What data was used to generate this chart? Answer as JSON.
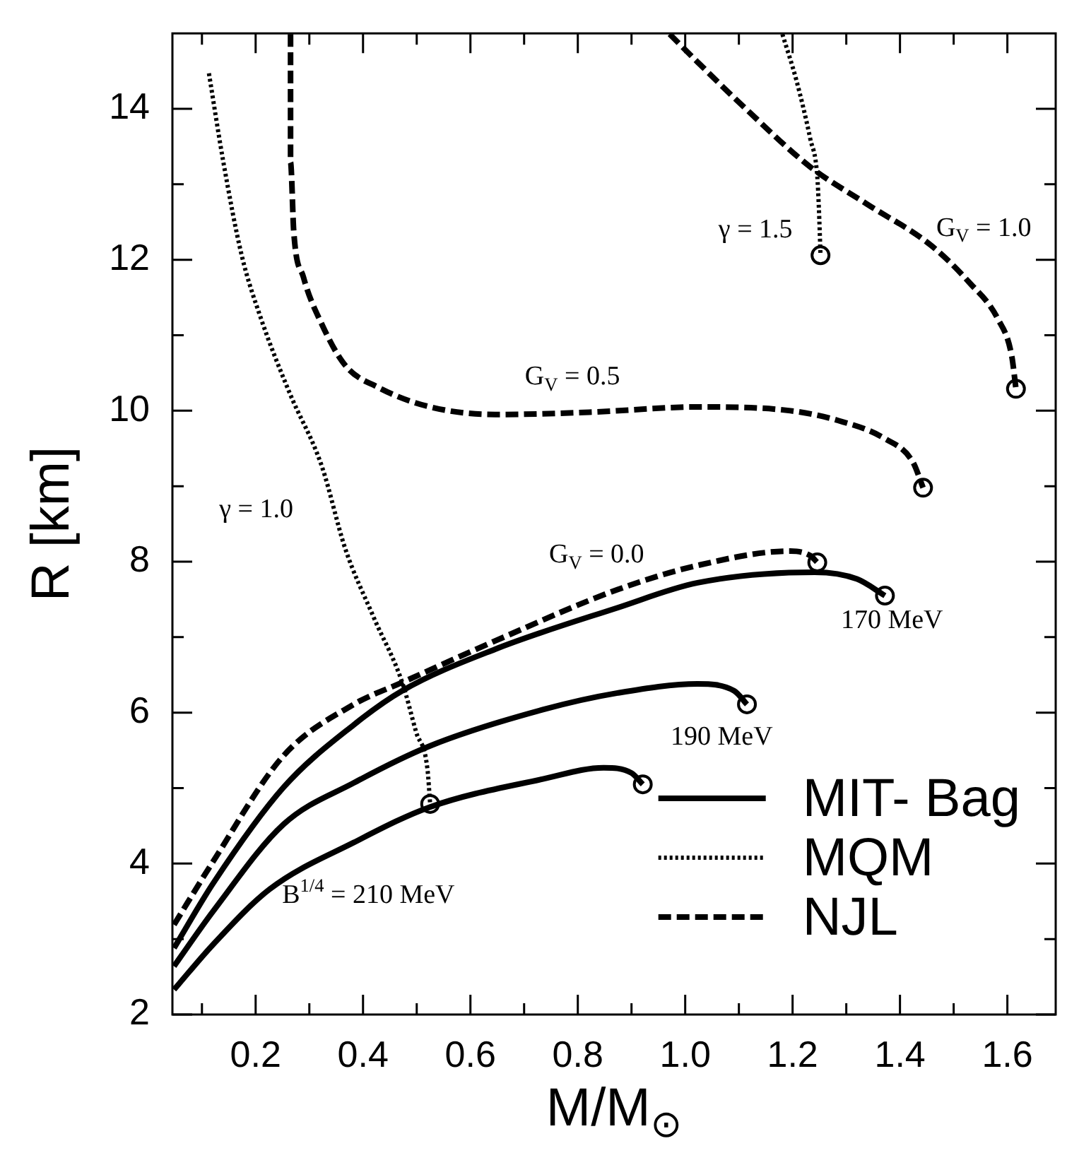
{
  "chart_data": {
    "type": "line",
    "xlabel": "M/M$_{⊙}$",
    "ylabel": "R [km]",
    "xlim": [
      0.045,
      1.69
    ],
    "ylim": [
      2,
      15
    ],
    "xticks": [
      {
        "value": 0.1,
        "label": null
      },
      0.2,
      {
        "value": 0.3,
        "label": null
      },
      0.4,
      {
        "value": 0.5,
        "label": null
      },
      0.6,
      {
        "value": 0.7,
        "label": null
      },
      0.8,
      {
        "value": 0.9,
        "label": null
      },
      {
        "value": 1.0,
        "label": "1.0"
      },
      {
        "value": 1.1,
        "label": null
      },
      1.2,
      {
        "value": 1.3,
        "label": null
      },
      1.4,
      {
        "value": 1.5,
        "label": null
      },
      1.6
    ],
    "yticks": [
      2,
      {
        "value": 3,
        "label": null
      },
      4,
      {
        "value": 5,
        "label": null
      },
      6,
      {
        "value": 7,
        "label": null
      },
      8,
      {
        "value": 9,
        "label": null
      },
      10,
      {
        "value": 11,
        "label": null
      },
      12,
      {
        "value": 13,
        "label": null
      },
      14
    ],
    "grid": false,
    "legend": "bottom right",
    "marker": "none",
    "series": [
      {
        "name": "MIT- Bag",
        "color": "#000000",
        "line_style": "solid",
        "x": [
          0.048,
          0.121,
          0.226,
          0.383,
          0.525,
          0.735,
          0.848,
          0.9,
          0.921
        ],
        "values": [
          2.33,
          2.93,
          3.66,
          4.28,
          4.75,
          5.12,
          5.27,
          5.2,
          5.05
        ]
      },
      {
        "color": "#000000",
        "line_style": "solid",
        "x": [
          0.048,
          0.121,
          0.252,
          0.383,
          0.525,
          0.735,
          0.874,
          1.023,
          1.091,
          1.115
        ],
        "values": [
          2.64,
          3.37,
          4.52,
          5.07,
          5.56,
          6.04,
          6.26,
          6.38,
          6.29,
          6.11
        ]
      },
      {
        "color": "#000000",
        "line_style": "solid",
        "x": [
          0.048,
          0.121,
          0.252,
          0.383,
          0.473,
          0.646,
          0.874,
          1.023,
          1.241,
          1.32,
          1.372
        ],
        "values": [
          2.88,
          3.74,
          5.01,
          5.84,
          6.29,
          6.84,
          7.39,
          7.72,
          7.86,
          7.77,
          7.55
        ]
      },
      {
        "name": "MQM",
        "color": "#000000",
        "line_style": "dotted",
        "x": [
          0.113,
          0.14,
          0.174,
          0.21,
          0.263,
          0.323,
          0.367,
          0.42,
          0.473,
          0.499,
          0.52,
          0.525
        ],
        "values": [
          14.47,
          13.29,
          12.06,
          11.22,
          10.24,
          9.27,
          8.17,
          7.26,
          6.4,
          5.74,
          5.25,
          4.79
        ]
      },
      {
        "color": "#000000",
        "line_style": "dotted",
        "x": [
          1.181,
          1.207,
          1.233,
          1.246,
          1.249,
          1.252
        ],
        "values": [
          14.99,
          14.38,
          13.6,
          13.1,
          12.68,
          12.06
        ]
      },
      {
        "name": "NJL",
        "color": "#000000",
        "line_style": "dashed",
        "x": [
          0.048,
          0.121,
          0.252,
          0.383,
          0.473,
          0.646,
          0.874,
          1.023,
          1.196,
          1.233,
          1.246
        ],
        "values": [
          3.19,
          4.03,
          5.43,
          6.11,
          6.4,
          6.95,
          7.63,
          7.95,
          8.14,
          8.08,
          7.99
        ]
      },
      {
        "color": "#000000",
        "line_style": "dashed",
        "x": [
          0.265,
          0.265,
          0.271,
          0.289,
          0.323,
          0.367,
          0.428,
          0.525,
          0.646,
          0.821,
          1.023,
          1.196,
          1.285,
          1.372,
          1.424,
          1.443
        ],
        "values": [
          14.99,
          13.29,
          12.37,
          11.77,
          11.15,
          10.6,
          10.31,
          10.05,
          9.95,
          9.98,
          10.05,
          10.0,
          9.87,
          9.63,
          9.32,
          8.98
        ]
      },
      {
        "color": "#000000",
        "line_style": "dashed",
        "x": [
          0.971,
          1.023,
          1.11,
          1.233,
          1.338,
          1.458,
          1.529,
          1.582,
          1.608,
          1.616
        ],
        "values": [
          14.99,
          14.62,
          14.02,
          13.23,
          12.74,
          12.19,
          11.7,
          11.22,
          10.73,
          10.29
        ]
      },
      {
        "type": "scatter",
        "marker": "circle",
        "color": "#000000",
        "x": [
          0.921,
          1.115,
          1.372,
          1.246,
          1.443,
          1.616,
          0.525,
          1.252
        ],
        "values": [
          5.05,
          6.11,
          7.55,
          7.99,
          8.98,
          10.29,
          4.79,
          12.06
        ]
      }
    ],
    "annotations": [
      "γ = 1.5",
      "G$_{V}$ = 1.0",
      "G$_{V}$ = 0.5",
      "γ = 1.0",
      "G$_{V}$ = 0.0",
      "170 MeV",
      "190 MeV",
      "B$^{1/4}$ = 210 MeV"
    ]
  }
}
